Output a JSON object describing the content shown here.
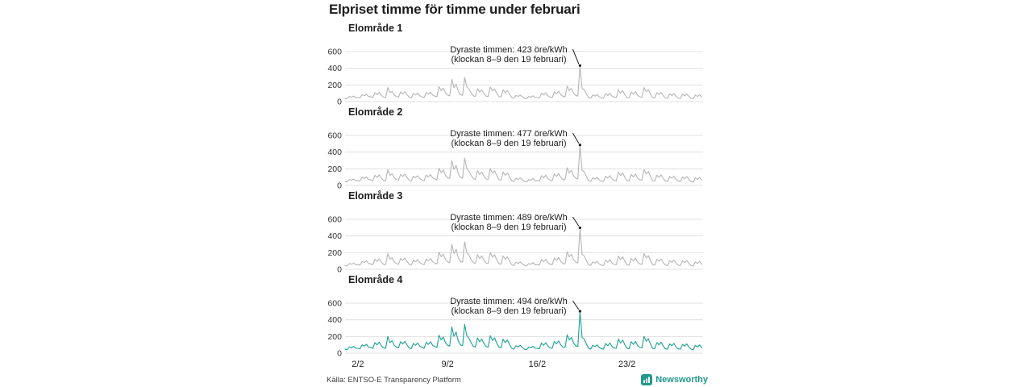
{
  "title": "Elpriset timme för timme under februari",
  "source": "Källa: ENTSO-E Transparency Platform",
  "brand": {
    "name": "Newsworthy",
    "color": "#21998c"
  },
  "colors": {
    "grid": "#e0e0e0",
    "tick_text": "#333333",
    "annotation": "#1d1d1d",
    "line_gray": "#b5b5b5",
    "line_teal": "#1aa18f"
  },
  "chart_data": {
    "type": "line",
    "title": "Elpriset timme för timme under februari",
    "unit": "öre/kWh",
    "x_hours_per_point": 4,
    "x_total_hours": 672,
    "x_ticks": [
      {
        "label": "2/2",
        "day": 2
      },
      {
        "label": "9/2",
        "day": 9
      },
      {
        "label": "16/2",
        "day": 16
      },
      {
        "label": "23/2",
        "day": 23
      }
    ],
    "y_ticks": [
      600,
      400,
      200,
      0
    ],
    "ylim": [
      0,
      600
    ],
    "grid": true,
    "panels": [
      {
        "label": "Elområde 1",
        "annotation_line1": "Dyraste timmen: 423 öre/kWh",
        "annotation_line2": "(klockan 8–9 den 19 februari)",
        "max_value": 423,
        "color": "#b5b5b5",
        "values": [
          40,
          35,
          62,
          53,
          66,
          48,
          48,
          44,
          84,
          70,
          88,
          62,
          57,
          48,
          106,
          84,
          110,
          75,
          53,
          48,
          167,
          106,
          123,
          79,
          62,
          53,
          114,
          92,
          119,
          84,
          53,
          44,
          97,
          79,
          101,
          70,
          57,
          48,
          110,
          88,
          114,
          79,
          66,
          57,
          180,
          132,
          163,
          106,
          79,
          70,
          264,
          167,
          211,
          123,
          84,
          75,
          290,
          176,
          150,
          106,
          70,
          62,
          154,
          114,
          141,
          97,
          66,
          62,
          176,
          128,
          154,
          101,
          62,
          53,
          141,
          106,
          132,
          88,
          48,
          40,
          75,
          62,
          79,
          57,
          40,
          35,
          62,
          53,
          70,
          48,
          48,
          44,
          101,
          79,
          106,
          70,
          53,
          48,
          119,
          92,
          123,
          84,
          62,
          57,
          185,
          132,
          158,
          101,
          75,
          66,
          423,
          158,
          141,
          92,
          48,
          40,
          79,
          66,
          84,
          57,
          44,
          40,
          97,
          75,
          101,
          66,
          53,
          48,
          141,
          101,
          132,
          84,
          48,
          44,
          114,
          88,
          119,
          75,
          57,
          53,
          167,
          119,
          145,
          92,
          48,
          44,
          106,
          84,
          110,
          70,
          44,
          40,
          92,
          75,
          97,
          62,
          44,
          40,
          88,
          70,
          92,
          62,
          40,
          35,
          79,
          62,
          84,
          53
        ]
      },
      {
        "label": "Elområde 2",
        "annotation_line1": "Dyraste timmen: 477 öre/kWh",
        "annotation_line2": "(klockan 8–9 den 19 februari)",
        "max_value": 477,
        "color": "#b5b5b5",
        "values": [
          47,
          42,
          72,
          62,
          77,
          57,
          57,
          52,
          97,
          82,
          102,
          72,
          67,
          57,
          122,
          97,
          127,
          87,
          62,
          57,
          192,
          122,
          142,
          92,
          72,
          62,
          132,
          107,
          137,
          97,
          62,
          52,
          112,
          92,
          117,
          82,
          67,
          57,
          127,
          102,
          132,
          92,
          77,
          67,
          207,
          152,
          187,
          122,
          92,
          82,
          298,
          192,
          242,
          142,
          97,
          87,
          328,
          202,
          172,
          122,
          82,
          72,
          177,
          132,
          162,
          112,
          77,
          72,
          202,
          147,
          177,
          117,
          72,
          62,
          162,
          122,
          152,
          102,
          57,
          47,
          87,
          72,
          92,
          67,
          47,
          42,
          72,
          62,
          82,
          57,
          57,
          52,
          117,
          92,
          122,
          82,
          62,
          57,
          137,
          107,
          142,
          97,
          72,
          67,
          212,
          152,
          182,
          117,
          87,
          77,
          477,
          182,
          162,
          107,
          57,
          47,
          92,
          77,
          97,
          67,
          52,
          47,
          112,
          87,
          117,
          77,
          62,
          57,
          162,
          117,
          152,
          97,
          57,
          52,
          132,
          102,
          137,
          87,
          67,
          62,
          192,
          137,
          167,
          107,
          57,
          52,
          122,
          97,
          127,
          82,
          52,
          47,
          107,
          87,
          112,
          72,
          52,
          47,
          102,
          82,
          107,
          72,
          47,
          42,
          92,
          72,
          97,
          62
        ]
      },
      {
        "label": "Elområde 3",
        "annotation_line1": "Dyraste timmen: 489 öre/kWh",
        "annotation_line2": "(klockan 8–9 den 19 februari)",
        "max_value": 489,
        "color": "#b5b5b5",
        "values": [
          45,
          40,
          70,
          60,
          75,
          55,
          55,
          50,
          95,
          80,
          100,
          70,
          65,
          55,
          120,
          95,
          125,
          85,
          60,
          55,
          190,
          120,
          140,
          90,
          70,
          60,
          130,
          105,
          135,
          95,
          60,
          50,
          110,
          90,
          115,
          80,
          65,
          55,
          125,
          100,
          130,
          90,
          75,
          65,
          205,
          150,
          185,
          120,
          90,
          80,
          300,
          190,
          240,
          140,
          95,
          85,
          330,
          200,
          170,
          120,
          80,
          70,
          175,
          130,
          160,
          110,
          75,
          70,
          200,
          145,
          175,
          115,
          70,
          60,
          160,
          120,
          150,
          100,
          55,
          45,
          85,
          70,
          90,
          65,
          45,
          40,
          70,
          60,
          80,
          55,
          55,
          50,
          115,
          90,
          120,
          80,
          60,
          55,
          135,
          105,
          140,
          95,
          70,
          65,
          210,
          150,
          180,
          115,
          85,
          75,
          489,
          180,
          160,
          105,
          55,
          45,
          90,
          75,
          95,
          65,
          50,
          45,
          110,
          85,
          115,
          75,
          60,
          55,
          160,
          115,
          150,
          95,
          55,
          50,
          130,
          100,
          135,
          85,
          65,
          60,
          190,
          135,
          165,
          105,
          55,
          50,
          120,
          95,
          125,
          80,
          50,
          45,
          105,
          85,
          110,
          70,
          50,
          45,
          100,
          80,
          105,
          70,
          45,
          40,
          90,
          70,
          95,
          60
        ]
      },
      {
        "label": "Elområde 4",
        "annotation_line1": "Dyraste timmen: 494 öre/kWh",
        "annotation_line2": "(klockan 8–9 den 19 februari)",
        "max_value": 494,
        "color": "#1aa18f",
        "values": [
          48,
          42,
          75,
          63,
          80,
          58,
          58,
          52,
          100,
          84,
          106,
          73,
          68,
          58,
          127,
          100,
          132,
          89,
          63,
          58,
          200,
          126,
          148,
          94,
          73,
          63,
          137,
          110,
          142,
          99,
          63,
          52,
          116,
          94,
          121,
          84,
          68,
          58,
          131,
          105,
          137,
          94,
          79,
          68,
          216,
          158,
          194,
          126,
          94,
          84,
          315,
          200,
          252,
          147,
          100,
          89,
          345,
          210,
          179,
          126,
          84,
          73,
          184,
          137,
          168,
          116,
          79,
          73,
          210,
          152,
          184,
          121,
          73,
          63,
          168,
          126,
          158,
          105,
          58,
          47,
          89,
          73,
          94,
          68,
          47,
          42,
          73,
          63,
          84,
          58,
          58,
          52,
          121,
          94,
          126,
          84,
          63,
          58,
          142,
          110,
          147,
          100,
          73,
          68,
          220,
          158,
          189,
          121,
          89,
          79,
          494,
          189,
          168,
          110,
          58,
          47,
          94,
          79,
          100,
          68,
          52,
          47,
          116,
          89,
          121,
          79,
          63,
          58,
          168,
          121,
          158,
          100,
          58,
          52,
          137,
          105,
          142,
          89,
          68,
          63,
          200,
          142,
          173,
          110,
          58,
          52,
          126,
          100,
          132,
          84,
          52,
          47,
          110,
          89,
          116,
          73,
          52,
          47,
          105,
          84,
          110,
          73,
          47,
          42,
          94,
          73,
          100,
          63
        ]
      }
    ]
  }
}
